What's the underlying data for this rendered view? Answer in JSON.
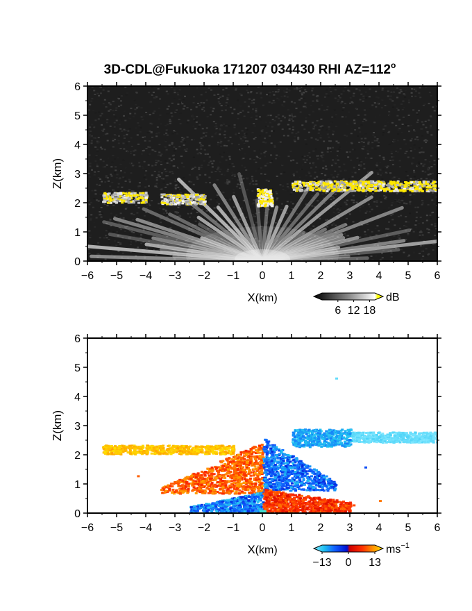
{
  "chart_data": [
    {
      "type": "heatmap",
      "title_main": "3D-CDL@Fukuoka 171207 034430 RHI AZ=112",
      "title_sup": "o",
      "xlabel_text": "X",
      "xlabel_unit": "(km)",
      "ylabel": "Z(km)",
      "xlim": [
        -6,
        6
      ],
      "ylim": [
        0,
        6
      ],
      "x_ticks": [
        -6,
        -5,
        -4,
        -3,
        -2,
        -1,
        0,
        1,
        2,
        3,
        4,
        5,
        6
      ],
      "y_ticks": [
        0,
        1,
        2,
        3,
        4,
        5,
        6
      ],
      "colorbar": {
        "unit": "dB",
        "unit_sup": "",
        "ticks": [
          6,
          12,
          18
        ],
        "range": [
          0,
          20
        ]
      },
      "features": [
        {
          "name": "cloud-layer",
          "x": [
            -5.5,
            -4.0
          ],
          "z": 2.2
        },
        {
          "name": "cloud-layer",
          "x": [
            -3.5,
            -2.0
          ],
          "z": 2.15
        },
        {
          "name": "cloud-layer",
          "x": [
            1.0,
            6.0
          ],
          "z": 2.6
        }
      ]
    },
    {
      "type": "heatmap",
      "xlabel_text": "X",
      "xlabel_unit": "(km)",
      "ylabel": "Z(km)",
      "xlim": [
        -6,
        6
      ],
      "ylim": [
        0,
        6
      ],
      "x_ticks": [
        -6,
        -5,
        -4,
        -3,
        -2,
        -1,
        0,
        1,
        2,
        3,
        4,
        5,
        6
      ],
      "y_ticks": [
        0,
        1,
        2,
        3,
        4,
        5,
        6
      ],
      "colorbar": {
        "unit": "ms",
        "unit_sup": "−1",
        "ticks": [
          "−13",
          "0",
          "13"
        ],
        "range": [
          -13,
          13
        ]
      },
      "features": [
        {
          "name": "cloud-layer-west",
          "x": [
            -5.5,
            -1.0
          ],
          "z": 2.2,
          "value": 13
        },
        {
          "name": "cloud-layer-east",
          "x": [
            1.0,
            6.0
          ],
          "z": 2.6,
          "value": -13
        },
        {
          "name": "near-field-west-upper",
          "x": [
            -3.5,
            0.0
          ],
          "z": [
            0.7,
            2.5
          ],
          "value": 10
        },
        {
          "name": "near-field-west-lower",
          "x": [
            -2.5,
            0.0
          ],
          "z": [
            0.0,
            0.7
          ],
          "value": -12
        },
        {
          "name": "near-field-east-upper",
          "x": [
            0.0,
            2.5
          ],
          "z": [
            0.8,
            2.6
          ],
          "value": -12
        },
        {
          "name": "near-field-east-lower",
          "x": [
            0.0,
            3.0
          ],
          "z": [
            0.0,
            0.8
          ],
          "value": 10
        }
      ]
    }
  ]
}
